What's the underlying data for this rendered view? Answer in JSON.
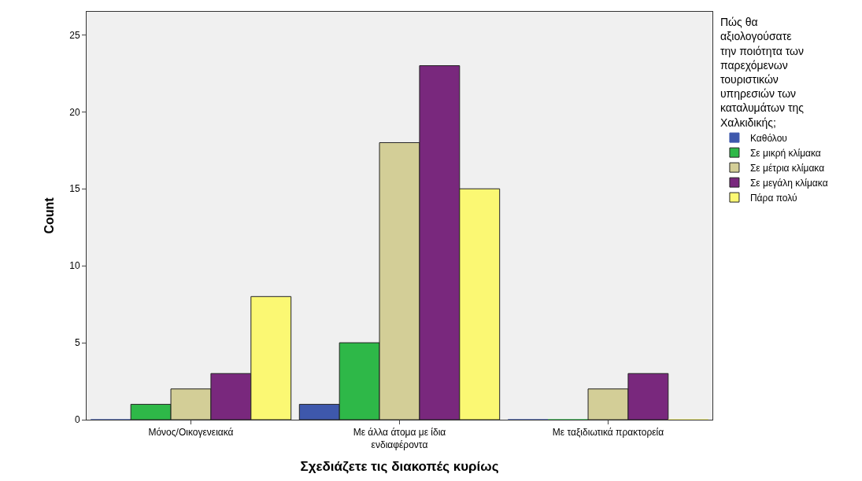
{
  "chart_data": {
    "type": "bar",
    "xlabel": "Σχεδιάζετε τις διακοπές κυρίως",
    "ylabel": "Count",
    "legend_title": "Πώς θα\nαξιολογούσατε\nτην ποιότητα των\nπαρεχόμενων\nτουριστικών\nυπηρεσιών των\nκαταλυμάτων της\nΧαλκιδικής;",
    "categories": [
      "Μόνος/Οικογενειακά",
      "Με άλλα άτομα με ίδια\nενδιαφέροντα",
      "Με ταξιδιωτικά πρακτορεία"
    ],
    "series": [
      {
        "name": "Καθόλου",
        "color": "#3e58ac",
        "values": [
          0,
          1,
          0
        ]
      },
      {
        "name": "Σε μικρή κλίμακα",
        "color": "#2eb848",
        "values": [
          1,
          5,
          0
        ]
      },
      {
        "name": "Σε μέτρια κλίμακα",
        "color": "#d3ce97",
        "values": [
          2,
          18,
          2
        ]
      },
      {
        "name": "Σε μεγάλη κλίμακα",
        "color": "#79287d",
        "values": [
          3,
          23,
          3
        ]
      },
      {
        "name": "Πάρα πολύ",
        "color": "#fbf873",
        "values": [
          8,
          15,
          0
        ]
      }
    ],
    "ylim": [
      0,
      26.5
    ],
    "yticks": [
      0,
      5,
      10,
      15,
      20,
      25
    ],
    "grid": false,
    "legend": "top right"
  }
}
